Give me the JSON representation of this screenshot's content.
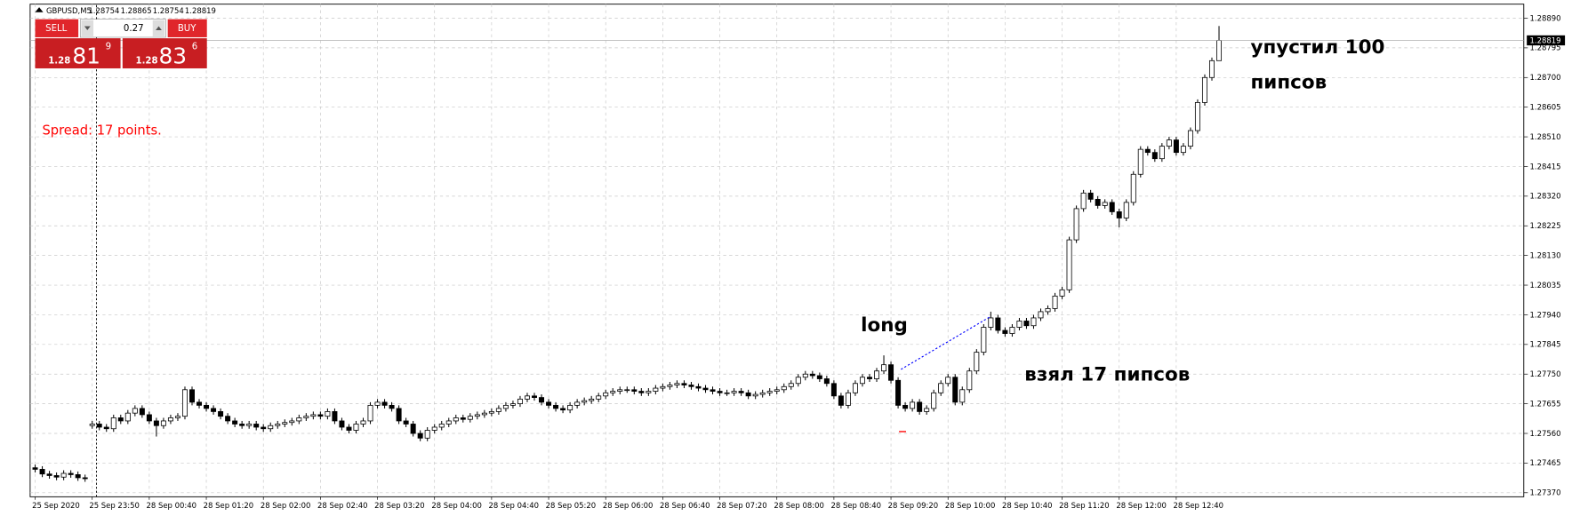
{
  "chart_data": {
    "type": "candlestick",
    "symbol": "GBPUSD,M5",
    "spread_text": "Spread: 17 points.",
    "trade_panel": {
      "sell": "SELL",
      "buy": "BUY",
      "lot": "0.27",
      "bid_prefix": "1.28",
      "bid_big": "81",
      "bid_sup": "9",
      "ask_prefix": "1.28",
      "ask_big": "83",
      "ask_sup": "6"
    },
    "annotations": [
      "long",
      "взял 17 пипсов",
      "упустил 100",
      "пипсов"
    ],
    "up_color": "#ffffff",
    "down_color": "#000000",
    "outline_color": "#000000",
    "grid": true,
    "ylim": [
      1.27357,
      1.28935
    ],
    "yticks": [
      {
        "value": 1.2889,
        "label": "1.28890"
      },
      1.28795,
      {
        "value": 1.287,
        "label": "1.28700"
      },
      1.28605,
      {
        "value": 1.2851,
        "label": "1.28510"
      },
      1.28415,
      {
        "value": 1.2832,
        "label": "1.28320"
      },
      1.28225,
      {
        "value": 1.2813,
        "label": "1.28130"
      },
      1.28035,
      {
        "value": 1.2794,
        "label": "1.27940"
      },
      1.27845,
      {
        "value": 1.2775,
        "label": "1.27750"
      },
      1.27655,
      {
        "value": 1.2756,
        "label": "1.27560"
      },
      1.27465,
      {
        "value": 1.2737,
        "label": "1.27370"
      }
    ],
    "categories": [
      "25 Sep 2020",
      null,
      null,
      null,
      null,
      null,
      null,
      null,
      "25 Sep 23:50",
      null,
      null,
      null,
      null,
      null,
      null,
      null,
      "28 Sep 00:40",
      null,
      null,
      null,
      null,
      null,
      null,
      null,
      "28 Sep 01:20",
      null,
      null,
      null,
      null,
      null,
      null,
      null,
      "28 Sep 02:00",
      null,
      null,
      null,
      null,
      null,
      null,
      null,
      "28 Sep 02:40",
      null,
      null,
      null,
      null,
      null,
      null,
      null,
      "28 Sep 03:20",
      null,
      null,
      null,
      null,
      null,
      null,
      null,
      "28 Sep 04:00",
      null,
      null,
      null,
      null,
      null,
      null,
      null,
      "28 Sep 04:40",
      null,
      null,
      null,
      null,
      null,
      null,
      null,
      "28 Sep 05:20",
      null,
      null,
      null,
      null,
      null,
      null,
      null,
      "28 Sep 06:00",
      null,
      null,
      null,
      null,
      null,
      null,
      null,
      "28 Sep 06:40",
      null,
      null,
      null,
      null,
      null,
      null,
      null,
      "28 Sep 07:20",
      null,
      null,
      null,
      null,
      null,
      null,
      null,
      "28 Sep 08:00",
      null,
      null,
      null,
      null,
      null,
      null,
      null,
      "28 Sep 08:40",
      null,
      null,
      null,
      null,
      null,
      null,
      null,
      "28 Sep 09:20",
      null,
      null,
      null,
      null,
      null,
      null,
      null,
      "28 Sep 10:00",
      null,
      null,
      null,
      null,
      null,
      null,
      null,
      "28 Sep 10:40",
      null,
      null,
      null,
      null,
      null,
      null,
      null,
      "28 Sep 11:20",
      null,
      null,
      null,
      null,
      null,
      null,
      null,
      "28 Sep 12:00",
      null,
      null,
      null,
      null,
      null,
      null,
      null,
      "28 Sep 12:40",
      null,
      null,
      null,
      null,
      null,
      null
    ],
    "open": [
      1.2745,
      1.27445,
      1.2743,
      1.27425,
      1.2742,
      1.27432,
      1.27428,
      1.27418,
      1.27585,
      1.2759,
      1.2758,
      1.27575,
      1.2761,
      1.276,
      1.27625,
      1.2764,
      1.2762,
      1.276,
      1.27585,
      1.276,
      1.2761,
      1.27615,
      1.277,
      1.2766,
      1.2765,
      1.2764,
      1.2763,
      1.27615,
      1.276,
      1.2759,
      1.27585,
      1.2759,
      1.2758,
      1.27575,
      1.27585,
      1.2759,
      1.27595,
      1.276,
      1.2761,
      1.27615,
      1.2762,
      1.27615,
      1.2763,
      1.276,
      1.2758,
      1.2757,
      1.2759,
      1.276,
      1.2765,
      1.2766,
      1.2765,
      1.2764,
      1.276,
      1.2759,
      1.2756,
      1.27545,
      1.2757,
      1.2758,
      1.2759,
      1.276,
      1.2761,
      1.27605,
      1.27615,
      1.2762,
      1.27625,
      1.2763,
      1.2764,
      1.2765,
      1.27655,
      1.2767,
      1.2768,
      1.27675,
      1.2766,
      1.2765,
      1.2764,
      1.27635,
      1.2765,
      1.2766,
      1.27665,
      1.2767,
      1.2768,
      1.2769,
      1.27695,
      1.277,
      1.277,
      1.27695,
      1.2769,
      1.27695,
      1.27705,
      1.2771,
      1.27715,
      1.2772,
      1.27715,
      1.2771,
      1.27705,
      1.277,
      1.27695,
      1.2769,
      1.2769,
      1.27695,
      1.2769,
      1.2768,
      1.27685,
      1.2769,
      1.27695,
      1.277,
      1.2771,
      1.2772,
      1.2774,
      1.2775,
      1.27745,
      1.27735,
      1.2772,
      1.2768,
      1.2765,
      1.2769,
      1.2772,
      1.2774,
      1.27735,
      1.2776,
      1.2778,
      1.2773,
      1.2765,
      1.2764,
      1.2766,
      1.2763,
      1.2764,
      1.2769,
      1.2772,
      1.2774,
      1.2766,
      1.277,
      1.2776,
      1.2782,
      1.279,
      1.2793,
      1.2789,
      1.2788,
      1.279,
      1.2792,
      1.27905,
      1.2793,
      1.2795,
      1.2796,
      1.28,
      1.2802,
      1.2818,
      1.2828,
      1.2833,
      1.2831,
      1.2829,
      1.283,
      1.2827,
      1.2825,
      1.283,
      1.2839,
      1.2847,
      1.2846,
      1.2844,
      1.2848,
      1.285,
      1.2846,
      1.2848,
      1.2853,
      1.2862,
      1.287,
      1.28754
    ],
    "high": [
      1.2746,
      1.27455,
      1.2744,
      1.27435,
      1.27442,
      1.27442,
      1.27438,
      1.27428,
      1.276,
      1.276,
      1.2759,
      1.2762,
      1.2762,
      1.27635,
      1.2765,
      1.2765,
      1.2763,
      1.2761,
      1.2761,
      1.2762,
      1.27625,
      1.2771,
      1.2771,
      1.2767,
      1.2766,
      1.2765,
      1.2764,
      1.27625,
      1.2761,
      1.276,
      1.276,
      1.276,
      1.2759,
      1.27595,
      1.276,
      1.27605,
      1.2761,
      1.2762,
      1.27625,
      1.2763,
      1.2763,
      1.2764,
      1.2764,
      1.2761,
      1.2759,
      1.276,
      1.2761,
      1.2766,
      1.2767,
      1.2767,
      1.2766,
      1.2765,
      1.2761,
      1.276,
      1.2757,
      1.2758,
      1.2759,
      1.276,
      1.2761,
      1.2762,
      1.2762,
      1.27625,
      1.2763,
      1.27635,
      1.2764,
      1.2765,
      1.2766,
      1.27665,
      1.2768,
      1.2769,
      1.2769,
      1.27685,
      1.2767,
      1.2766,
      1.2765,
      1.2766,
      1.2767,
      1.27675,
      1.2768,
      1.2769,
      1.277,
      1.27705,
      1.2771,
      1.2771,
      1.2771,
      1.27705,
      1.27705,
      1.27715,
      1.2772,
      1.27725,
      1.2773,
      1.2773,
      1.27725,
      1.2772,
      1.27715,
      1.2771,
      1.27705,
      1.277,
      1.27705,
      1.27705,
      1.277,
      1.27695,
      1.277,
      1.27705,
      1.2771,
      1.2772,
      1.2773,
      1.2775,
      1.2776,
      1.2776,
      1.27755,
      1.27745,
      1.2773,
      1.2769,
      1.277,
      1.2773,
      1.2775,
      1.2775,
      1.2777,
      1.2781,
      1.2779,
      1.2774,
      1.2766,
      1.2767,
      1.2767,
      1.2765,
      1.277,
      1.2773,
      1.2775,
      1.2775,
      1.2771,
      1.2777,
      1.2783,
      1.2791,
      1.2795,
      1.2794,
      1.279,
      1.2791,
      1.2793,
      1.2793,
      1.2794,
      1.2796,
      1.2797,
      1.2801,
      1.2803,
      1.2819,
      1.2829,
      1.2834,
      1.2834,
      1.2832,
      1.2831,
      1.2831,
      1.2828,
      1.2831,
      1.284,
      1.2848,
      1.2848,
      1.2847,
      1.2849,
      1.2851,
      1.2851,
      1.2849,
      1.2854,
      1.2863,
      1.2871,
      1.28764,
      1.28865
    ],
    "low": [
      1.27435,
      1.2742,
      1.27415,
      1.2741,
      1.2741,
      1.27418,
      1.27408,
      1.27405,
      1.27575,
      1.2757,
      1.27565,
      1.27565,
      1.2759,
      1.2759,
      1.27615,
      1.2761,
      1.2759,
      1.2755,
      1.27575,
      1.2759,
      1.276,
      1.27605,
      1.2765,
      1.2764,
      1.2763,
      1.2762,
      1.27605,
      1.2759,
      1.2758,
      1.27575,
      1.27575,
      1.2757,
      1.27565,
      1.27565,
      1.27575,
      1.2758,
      1.27585,
      1.2759,
      1.276,
      1.27605,
      1.27605,
      1.27605,
      1.2759,
      1.2757,
      1.2756,
      1.2756,
      1.2758,
      1.2759,
      1.2764,
      1.2764,
      1.2763,
      1.2759,
      1.2758,
      1.2755,
      1.27535,
      1.27535,
      1.2756,
      1.2757,
      1.2758,
      1.2759,
      1.27595,
      1.27595,
      1.27605,
      1.2761,
      1.27615,
      1.2762,
      1.2763,
      1.2764,
      1.27645,
      1.2766,
      1.27665,
      1.2765,
      1.2764,
      1.2763,
      1.27625,
      1.27625,
      1.2764,
      1.2765,
      1.27655,
      1.2766,
      1.2767,
      1.2768,
      1.27685,
      1.2769,
      1.27685,
      1.2768,
      1.2768,
      1.27685,
      1.27695,
      1.277,
      1.27705,
      1.27705,
      1.277,
      1.27695,
      1.2769,
      1.27685,
      1.2768,
      1.2768,
      1.2768,
      1.2768,
      1.2767,
      1.2767,
      1.27675,
      1.2768,
      1.27685,
      1.2769,
      1.277,
      1.2771,
      1.2773,
      1.27735,
      1.27725,
      1.2771,
      1.2767,
      1.2764,
      1.2764,
      1.2768,
      1.2771,
      1.27725,
      1.27725,
      1.2775,
      1.2772,
      1.2764,
      1.2763,
      1.2763,
      1.2762,
      1.2762,
      1.2763,
      1.2768,
      1.2771,
      1.2765,
      1.2765,
      1.2769,
      1.2775,
      1.2781,
      1.2789,
      1.2788,
      1.2787,
      1.2787,
      1.2789,
      1.27895,
      1.27895,
      1.2792,
      1.2794,
      1.2795,
      1.2799,
      1.2801,
      1.2817,
      1.2827,
      1.283,
      1.2828,
      1.2828,
      1.2826,
      1.2822,
      1.2824,
      1.2829,
      1.2838,
      1.2845,
      1.2843,
      1.2843,
      1.2847,
      1.2845,
      1.2845,
      1.2847,
      1.2852,
      1.2861,
      1.2869,
      1.28754
    ],
    "close": [
      1.27445,
      1.2743,
      1.27425,
      1.2742,
      1.27432,
      1.27428,
      1.27418,
      1.27415,
      1.2759,
      1.2758,
      1.27575,
      1.2761,
      1.276,
      1.27625,
      1.2764,
      1.2762,
      1.276,
      1.27585,
      1.276,
      1.2761,
      1.27615,
      1.277,
      1.2766,
      1.2765,
      1.2764,
      1.2763,
      1.27615,
      1.276,
      1.2759,
      1.27585,
      1.2759,
      1.2758,
      1.27575,
      1.27585,
      1.2759,
      1.27595,
      1.276,
      1.2761,
      1.27615,
      1.2762,
      1.27615,
      1.2763,
      1.276,
      1.2758,
      1.2757,
      1.2759,
      1.276,
      1.2765,
      1.2766,
      1.2765,
      1.2764,
      1.276,
      1.2759,
      1.2756,
      1.27545,
      1.2757,
      1.2758,
      1.2759,
      1.276,
      1.2761,
      1.27605,
      1.27615,
      1.2762,
      1.27625,
      1.2763,
      1.2764,
      1.2765,
      1.27655,
      1.2767,
      1.2768,
      1.27675,
      1.2766,
      1.2765,
      1.2764,
      1.27635,
      1.2765,
      1.2766,
      1.27665,
      1.2767,
      1.2768,
      1.2769,
      1.27695,
      1.277,
      1.277,
      1.27695,
      1.2769,
      1.27695,
      1.27705,
      1.2771,
      1.27715,
      1.2772,
      1.27715,
      1.2771,
      1.27705,
      1.277,
      1.27695,
      1.2769,
      1.2769,
      1.27695,
      1.2769,
      1.2768,
      1.27685,
      1.2769,
      1.27695,
      1.277,
      1.2771,
      1.2772,
      1.2774,
      1.2775,
      1.27745,
      1.27735,
      1.2772,
      1.2768,
      1.2765,
      1.2769,
      1.2772,
      1.2774,
      1.27735,
      1.2776,
      1.2778,
      1.2773,
      1.2765,
      1.2764,
      1.2766,
      1.2763,
      1.2764,
      1.2769,
      1.2772,
      1.2774,
      1.2766,
      1.277,
      1.2776,
      1.2782,
      1.279,
      1.2793,
      1.2789,
      1.2788,
      1.279,
      1.2792,
      1.27905,
      1.2793,
      1.2795,
      1.2796,
      1.28,
      1.2802,
      1.2818,
      1.2828,
      1.2833,
      1.2831,
      1.2829,
      1.283,
      1.2827,
      1.2825,
      1.283,
      1.2839,
      1.2847,
      1.2846,
      1.2844,
      1.2848,
      1.285,
      1.2846,
      1.2848,
      1.2853,
      1.2862,
      1.287,
      1.28754,
      1.28819
    ]
  }
}
